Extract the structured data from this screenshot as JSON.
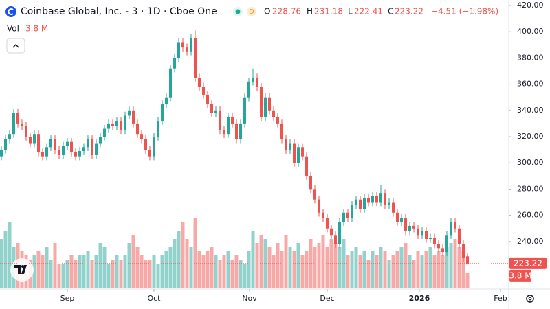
{
  "header": {
    "title": "Coinbase Global, Inc. - 3 · 1D · Cboe One",
    "badge": "D",
    "o_label": "O",
    "h_label": "H",
    "l_label": "L",
    "c_label": "C",
    "change": "−4.51 (−1.98%)",
    "vol_label": "Vol",
    "last_volume_label": "3.8 M"
  },
  "chart_data": {
    "type": "candlestick",
    "open": [
      305,
      310,
      318,
      322,
      338,
      330,
      328,
      320,
      315,
      322,
      308,
      305,
      312,
      318,
      310,
      306,
      313,
      316,
      308,
      305,
      309,
      312,
      318,
      306,
      315,
      320,
      326,
      330,
      328,
      332,
      325,
      336,
      340,
      330,
      322,
      318,
      310,
      305,
      320,
      332,
      345,
      350,
      372,
      380,
      392,
      388,
      385,
      395,
      365,
      358,
      352,
      345,
      338,
      340,
      325,
      322,
      335,
      330,
      318,
      330,
      350,
      362,
      365,
      358,
      335,
      350,
      340,
      335,
      330,
      318,
      310,
      315,
      300,
      312,
      305,
      290,
      280,
      272,
      262,
      258,
      250,
      245,
      238,
      255,
      262,
      258,
      268,
      272,
      265,
      273,
      270,
      275,
      270,
      277,
      268,
      270,
      262,
      255,
      258,
      248,
      252,
      250,
      245,
      248,
      242,
      243,
      238,
      235,
      232,
      245,
      255,
      250,
      238,
      228.76
    ],
    "high": [
      313,
      321,
      325,
      341,
      341,
      333,
      331,
      323,
      325,
      325,
      311,
      315,
      321,
      321,
      313,
      316,
      319,
      319,
      311,
      312,
      315,
      321,
      321,
      318,
      323,
      329,
      333,
      333,
      335,
      335,
      339,
      343,
      343,
      333,
      325,
      321,
      313,
      323,
      335,
      348,
      353,
      375,
      383,
      395,
      395,
      391,
      398,
      401,
      368,
      361,
      355,
      348,
      343,
      343,
      328,
      338,
      338,
      333,
      333,
      353,
      365,
      372,
      368,
      361,
      353,
      353,
      343,
      338,
      333,
      321,
      318,
      318,
      315,
      315,
      308,
      293,
      283,
      275,
      265,
      261,
      253,
      248,
      258,
      265,
      265,
      271,
      275,
      275,
      276,
      276,
      278,
      278,
      283,
      280,
      273,
      273,
      265,
      261,
      261,
      255,
      255,
      253,
      251,
      251,
      246,
      246,
      241,
      238,
      248,
      258,
      258,
      253,
      241,
      231.18
    ],
    "low": [
      302,
      307,
      315,
      319,
      327,
      325,
      317,
      312,
      312,
      305,
      302,
      302,
      309,
      307,
      303,
      303,
      310,
      305,
      302,
      302,
      306,
      309,
      303,
      303,
      312,
      317,
      323,
      325,
      325,
      322,
      322,
      333,
      327,
      319,
      315,
      307,
      302,
      302,
      317,
      329,
      342,
      347,
      369,
      377,
      385,
      382,
      382,
      362,
      355,
      349,
      342,
      335,
      335,
      322,
      319,
      319,
      327,
      315,
      315,
      327,
      347,
      359,
      355,
      332,
      332,
      337,
      332,
      327,
      315,
      307,
      307,
      297,
      297,
      302,
      287,
      277,
      269,
      259,
      255,
      247,
      242,
      235,
      235,
      252,
      255,
      255,
      265,
      262,
      262,
      267,
      267,
      267,
      267,
      265,
      265,
      259,
      252,
      252,
      245,
      245,
      247,
      242,
      242,
      239,
      239,
      235,
      232,
      229,
      229,
      242,
      247,
      235,
      224.73,
      222.41
    ],
    "close": [
      310,
      318,
      322,
      338,
      330,
      328,
      320,
      315,
      322,
      308,
      305,
      312,
      318,
      310,
      306,
      313,
      316,
      308,
      305,
      309,
      312,
      318,
      306,
      315,
      320,
      326,
      330,
      328,
      332,
      325,
      336,
      340,
      330,
      322,
      318,
      310,
      305,
      320,
      332,
      345,
      350,
      372,
      380,
      392,
      388,
      385,
      395,
      365,
      358,
      352,
      345,
      338,
      340,
      325,
      322,
      335,
      330,
      318,
      330,
      350,
      362,
      365,
      358,
      335,
      350,
      340,
      335,
      330,
      318,
      310,
      315,
      300,
      312,
      305,
      290,
      280,
      272,
      262,
      258,
      250,
      245,
      238,
      255,
      262,
      258,
      268,
      272,
      265,
      273,
      270,
      275,
      270,
      277,
      268,
      270,
      262,
      255,
      258,
      248,
      252,
      250,
      245,
      248,
      242,
      243,
      238,
      235,
      232,
      245,
      255,
      250,
      238,
      227.73,
      223.22
    ],
    "volume": [
      12,
      14,
      16,
      10,
      11,
      9,
      8,
      7,
      8,
      9,
      8,
      10,
      7,
      11,
      6,
      6,
      7,
      8,
      7,
      8,
      8,
      9,
      7,
      8,
      11,
      10,
      6,
      7,
      8,
      7,
      8,
      11,
      13,
      10,
      8,
      7,
      7,
      8,
      6,
      8,
      9,
      10,
      12,
      14,
      16,
      12,
      10,
      17,
      9,
      8,
      9,
      10,
      8,
      7,
      8,
      9,
      7,
      8,
      7,
      6,
      9,
      14,
      11,
      13,
      12,
      10,
      8,
      11,
      9,
      13,
      10,
      9,
      11,
      8,
      9,
      12,
      10,
      11,
      13,
      10,
      12,
      11,
      10,
      12,
      8,
      9,
      10,
      8,
      9,
      7,
      9,
      8,
      10,
      9,
      7,
      8,
      9,
      10,
      11,
      8,
      7,
      9,
      8,
      9,
      10,
      8,
      9,
      8,
      10,
      11,
      12,
      10,
      9,
      3.8
    ],
    "up_color": "#26a69a",
    "down_color": "#ef5350",
    "ylim": [
      204.3,
      424.2
    ],
    "yticks": [
      {
        "value": 240,
        "label": "240.00"
      },
      {
        "value": 260,
        "label": "260.00"
      },
      {
        "value": 280,
        "label": "280.00"
      },
      {
        "value": 300,
        "label": "300.00"
      },
      {
        "value": 320,
        "label": "320.00"
      },
      {
        "value": 340,
        "label": "340.00"
      },
      {
        "value": 360,
        "label": "360.00"
      },
      {
        "value": 380,
        "label": "380.00"
      },
      {
        "value": 400,
        "label": "400.00"
      },
      {
        "value": 420,
        "label": "420.00"
      }
    ],
    "xlim": [
      -0.333,
      123
    ],
    "xticks": [
      {
        "value": 16,
        "label": "Sep"
      },
      {
        "value": 37,
        "label": "Oct"
      },
      {
        "value": 60.17,
        "label": "Nov"
      },
      {
        "value": 79,
        "label": "Dec"
      },
      {
        "value": 101.33,
        "label": "2026"
      },
      {
        "value": 121,
        "label": "Feb"
      }
    ],
    "grid": false
  }
}
